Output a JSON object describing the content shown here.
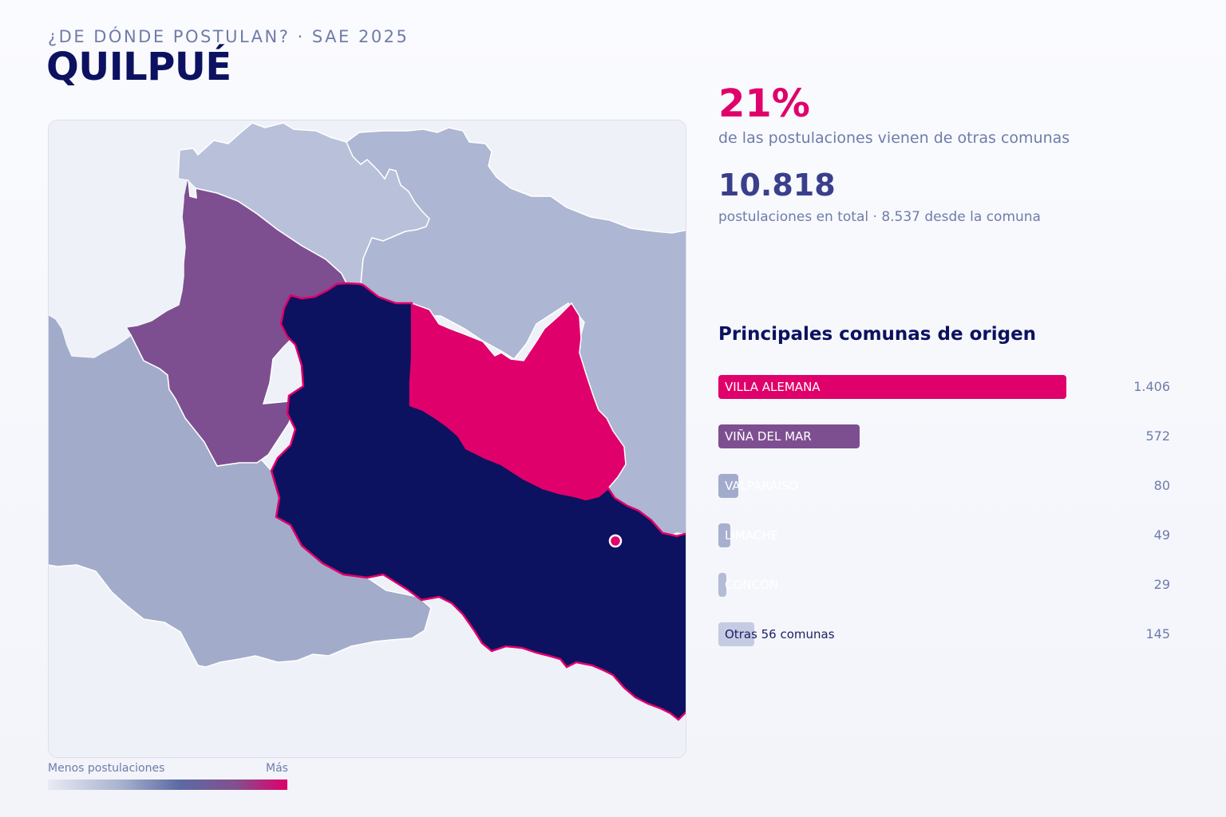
{
  "header": {
    "kicker": "¿DE DÓNDE POSTULAN? · SAE 2025",
    "title": "QUILPUÉ"
  },
  "stats": {
    "external_pct": "21%",
    "external_caption": "de las postulaciones vienen de otras comunas",
    "total": "10.818",
    "total_caption": "postulaciones en total · 8.537 desde la comuna"
  },
  "ranking": {
    "title": "Principales comunas de origen",
    "max_value": 1406,
    "items": [
      {
        "label": "VILLA ALEMANA",
        "value": 1406,
        "value_text": "1.406",
        "color": "#e0006b"
      },
      {
        "label": "VIÑA DEL MAR",
        "value": 572,
        "value_text": "572",
        "color": "#7e4f90"
      },
      {
        "label": "VALPARAÍSO",
        "value": 80,
        "value_text": "80",
        "color": "#a3abcc"
      },
      {
        "label": "LIMACHE",
        "value": 49,
        "value_text": "49",
        "color": "#a8b0cf"
      },
      {
        "label": "CONCÓN",
        "value": 29,
        "value_text": "29",
        "color": "#b4bbd6"
      },
      {
        "label": "Otras 56 comunas",
        "value": 145,
        "value_text": "145",
        "color": "#c5cbe2"
      }
    ]
  },
  "legend": {
    "low": "Menos postulaciones",
    "high": "Más"
  },
  "colors": {
    "home_commune": "#0c1260",
    "accent": "#e0006b",
    "secondary": "#7e4f90",
    "low": "#aab3cf",
    "background": "#eef1f8"
  }
}
